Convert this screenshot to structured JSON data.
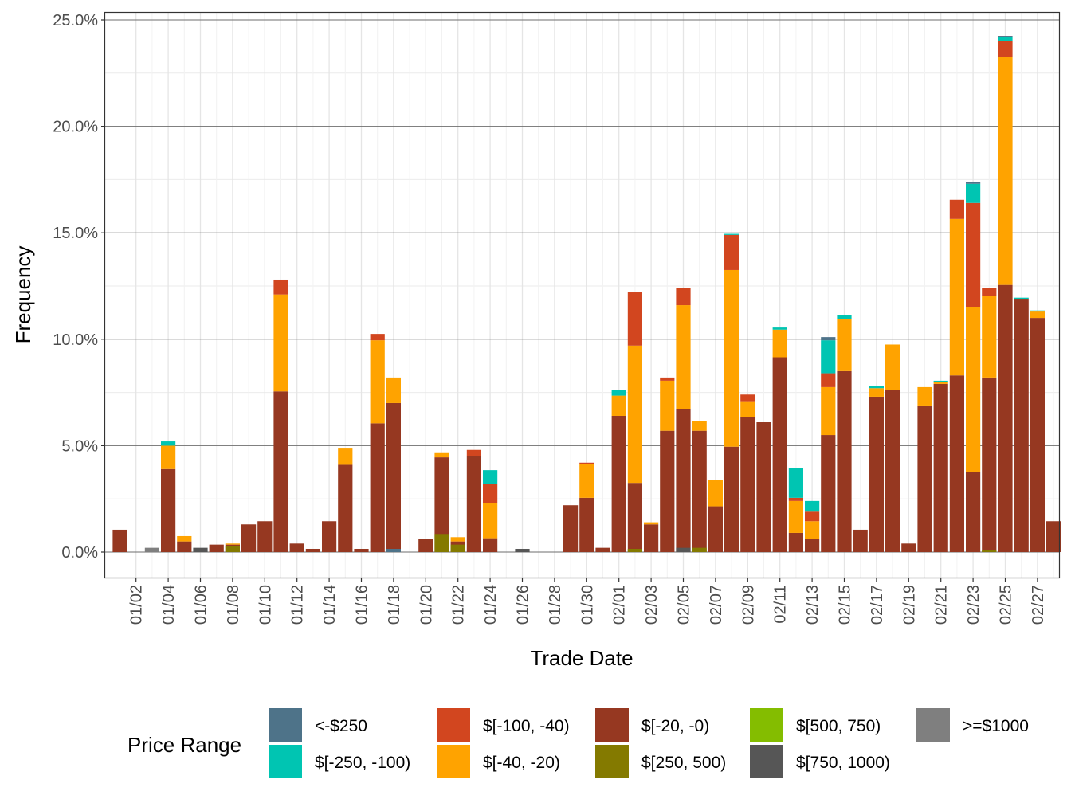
{
  "chart_data": {
    "type": "bar",
    "stacked": true,
    "xlabel": "Trade Date",
    "ylabel": "Frequency",
    "y_unit": "percent",
    "ylim": [
      -1.2,
      25.5
    ],
    "y_ticks": [
      0,
      5,
      10,
      15,
      20,
      25
    ],
    "y_tick_labels": [
      "0.0%",
      "5.0%",
      "10.0%",
      "15.0%",
      "20.0%",
      "25.0%"
    ],
    "x_ticks": [
      "01/02",
      "01/04",
      "01/06",
      "01/08",
      "01/10",
      "01/12",
      "01/14",
      "01/16",
      "01/18",
      "01/20",
      "01/22",
      "01/24",
      "01/26",
      "01/28",
      "01/30",
      "02/01",
      "02/03",
      "02/05",
      "02/07",
      "02/09",
      "02/11",
      "02/13",
      "02/15",
      "02/17",
      "02/19",
      "02/21",
      "02/23",
      "02/25",
      "02/27"
    ],
    "grid": true,
    "legend": {
      "title": "Price Range",
      "position": "bottom",
      "entries": [
        {
          "label": "<-$250",
          "color": "#4E7389"
        },
        {
          "label": "$[-250, -100)",
          "color": "#00C5B2"
        },
        {
          "label": "$[-100, -40)",
          "color": "#D2461F"
        },
        {
          "label": "$[-40, -20)",
          "color": "#FFA300"
        },
        {
          "label": "$[-20, -0)",
          "color": "#963821"
        },
        {
          "label": "$[250, 500)",
          "color": "#847A00"
        },
        {
          "label": "$[500, 750)",
          "color": "#84BD00"
        },
        {
          "label": "$[750, 1000)",
          "color": "#565656"
        },
        {
          "label": ">=$1000",
          "color": "#7F7F7F"
        }
      ]
    },
    "stack_order": [
      "$[-20, -0)",
      "$[-40, -20)",
      "$[-100, -40)",
      "$[-250, -100)",
      "<-$250"
    ],
    "categories": [
      "01/01",
      "01/02",
      "01/03",
      "01/04",
      "01/05",
      "01/06",
      "01/07",
      "01/08",
      "01/09",
      "01/10",
      "01/11",
      "01/12",
      "01/13",
      "01/14",
      "01/15",
      "01/16",
      "01/17",
      "01/18",
      "01/19",
      "01/20",
      "01/21",
      "01/22",
      "01/23",
      "01/24",
      "01/25",
      "01/26",
      "01/27",
      "01/28",
      "01/29",
      "01/30",
      "01/31",
      "02/01",
      "02/02",
      "02/03",
      "02/04",
      "02/05",
      "02/06",
      "02/07",
      "02/08",
      "02/09",
      "02/10",
      "02/11",
      "02/12",
      "02/13",
      "02/14",
      "02/15",
      "02/16",
      "02/17",
      "02/18",
      "02/19",
      "02/20",
      "02/21",
      "02/22",
      "02/23",
      "02/24",
      "02/25",
      "02/26",
      "02/27",
      "02/28"
    ],
    "series": [
      {
        "name": "$[-20, -0)",
        "values": [
          1.05,
          0,
          0,
          3.9,
          0.5,
          0,
          0.35,
          0.35,
          1.3,
          1.45,
          7.55,
          0.4,
          0.15,
          1.45,
          4.1,
          0.15,
          6.05,
          7.0,
          0,
          0.6,
          4.45,
          0.5,
          4.5,
          0.65,
          0,
          0,
          0,
          0,
          2.2,
          2.55,
          0.2,
          6.4,
          3.25,
          1.3,
          5.7,
          6.7,
          5.7,
          2.15,
          4.95,
          6.35,
          6.1,
          9.15,
          0.9,
          0.6,
          5.5,
          8.5,
          1.05,
          7.3,
          7.6,
          0.4,
          6.85,
          7.9,
          8.3,
          3.75,
          8.2,
          12.55,
          11.9,
          11.0,
          1.45
        ]
      },
      {
        "name": "$[-40, -20)",
        "values": [
          0,
          0,
          0,
          1.1,
          0.25,
          0,
          0,
          0.05,
          0,
          0,
          4.55,
          0,
          0,
          0,
          0.8,
          0,
          3.9,
          1.2,
          0,
          0,
          0.2,
          0.2,
          0,
          1.65,
          0,
          0,
          0,
          0,
          0,
          1.6,
          0,
          0.95,
          6.45,
          0.1,
          2.35,
          4.9,
          0.45,
          1.25,
          8.3,
          0.7,
          0,
          1.3,
          1.5,
          0.85,
          2.25,
          2.45,
          0,
          0.4,
          2.15,
          0,
          0.9,
          0.1,
          7.35,
          7.75,
          3.85,
          10.7,
          0,
          0.3,
          0
        ]
      },
      {
        "name": "$[-100, -40)",
        "values": [
          0,
          0,
          0,
          0,
          0,
          0,
          0,
          0,
          0,
          0,
          0.7,
          0,
          0,
          0,
          0,
          0,
          0.3,
          0,
          0,
          0,
          0,
          0,
          0.3,
          0.9,
          0,
          0,
          0,
          0,
          0,
          0.05,
          0,
          0,
          2.5,
          0,
          0.15,
          0.8,
          0,
          0,
          1.65,
          0.35,
          0,
          0,
          0.15,
          0.45,
          0.65,
          0,
          0,
          0,
          0,
          0,
          0,
          0,
          0.9,
          4.9,
          0.35,
          0.75,
          0,
          0,
          0
        ]
      },
      {
        "name": "$[-250, -100)",
        "values": [
          0,
          0,
          0,
          0.2,
          0,
          0,
          0,
          0,
          0,
          0,
          0,
          0,
          0,
          0,
          0,
          0,
          0,
          0,
          0,
          0,
          0,
          0,
          0,
          0.65,
          0,
          0,
          0,
          0,
          0,
          0,
          0,
          0.25,
          0,
          0,
          0,
          0,
          0,
          0,
          0.05,
          0,
          0,
          0.1,
          1.4,
          0.5,
          1.55,
          0.2,
          0,
          0.1,
          0,
          0,
          0,
          0.05,
          0,
          0.9,
          0,
          0.2,
          0.05,
          0.05,
          0
        ]
      },
      {
        "name": "<-$250",
        "values": [
          0,
          0,
          0,
          0,
          0,
          0,
          0,
          0,
          0,
          0,
          0,
          0,
          0,
          0,
          0,
          0,
          0,
          0,
          0,
          0,
          0,
          0,
          0,
          0,
          0,
          0,
          0,
          0,
          0,
          0,
          0,
          0,
          0,
          0,
          0,
          0,
          0,
          0,
          0,
          0,
          0,
          0,
          0,
          0,
          0.15,
          0,
          0,
          0,
          0,
          0,
          0,
          0,
          0,
          0.1,
          0,
          0.05,
          0,
          0,
          0
        ]
      }
    ],
    "positive_overlays": [
      {
        "category": "01/03",
        "name": ">=$1000",
        "value": 0.2
      },
      {
        "category": "01/06",
        "name": "$[750, 1000)",
        "value": 0.2
      },
      {
        "category": "01/08",
        "name": "$[250, 500)",
        "value": 0.3
      },
      {
        "category": "01/18",
        "name": "<-$250",
        "value": 0.15
      },
      {
        "category": "01/21",
        "name": "$[250, 500)",
        "value": 0.85
      },
      {
        "category": "01/22",
        "name": "$[250, 500)",
        "value": 0.35
      },
      {
        "category": "01/26",
        "name": "$[750, 1000)",
        "value": 0.15
      },
      {
        "category": "02/02",
        "name": "$[250, 500)",
        "value": 0.15
      },
      {
        "category": "02/05",
        "name": "$[750, 1000)",
        "value": 0.2
      },
      {
        "category": "02/06",
        "name": "$[250, 500)",
        "value": 0.2
      },
      {
        "category": "02/24",
        "name": "$[250, 500)",
        "value": 0.1
      }
    ]
  }
}
